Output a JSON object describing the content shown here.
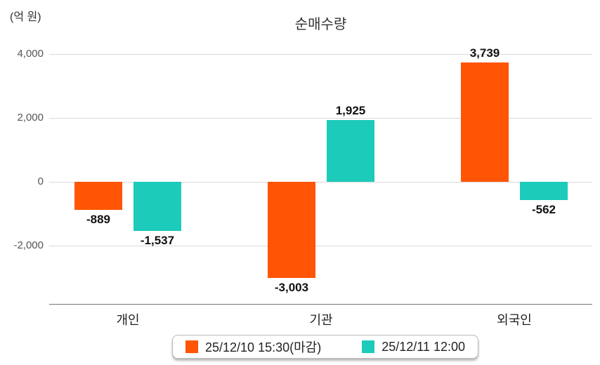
{
  "title": "순매수량",
  "unit_label": "(억 원)",
  "colors": {
    "series1": "#ff5504",
    "series2": "#1dcbba",
    "gridline": "#d9d9d9",
    "axis_line": "#777777",
    "tick_text": "#555555",
    "label_text": "#111111"
  },
  "chart_data": {
    "type": "bar",
    "categories": [
      "개인",
      "기관",
      "외국인"
    ],
    "series": [
      {
        "name": "25/12/10 15:30(마감)",
        "color": "#ff5504",
        "values": [
          -889,
          -3003,
          3739
        ]
      },
      {
        "name": "25/12/11 12:00",
        "color": "#1dcbba",
        "values": [
          -1537,
          1925,
          -562
        ]
      }
    ],
    "value_labels": [
      [
        "-889",
        "-3,003",
        "3,739"
      ],
      [
        "-1,537",
        "1,925",
        "-562"
      ]
    ],
    "yticks": [
      4000,
      2000,
      0,
      -2000
    ],
    "ytick_labels": [
      "4,000",
      "2,000",
      "0",
      "-2,000"
    ],
    "ylim": [
      -3800,
      4600
    ],
    "title": "순매수량",
    "xlabel": "",
    "ylabel": "(억 원)",
    "grid": true,
    "legend_position": "bottom"
  }
}
